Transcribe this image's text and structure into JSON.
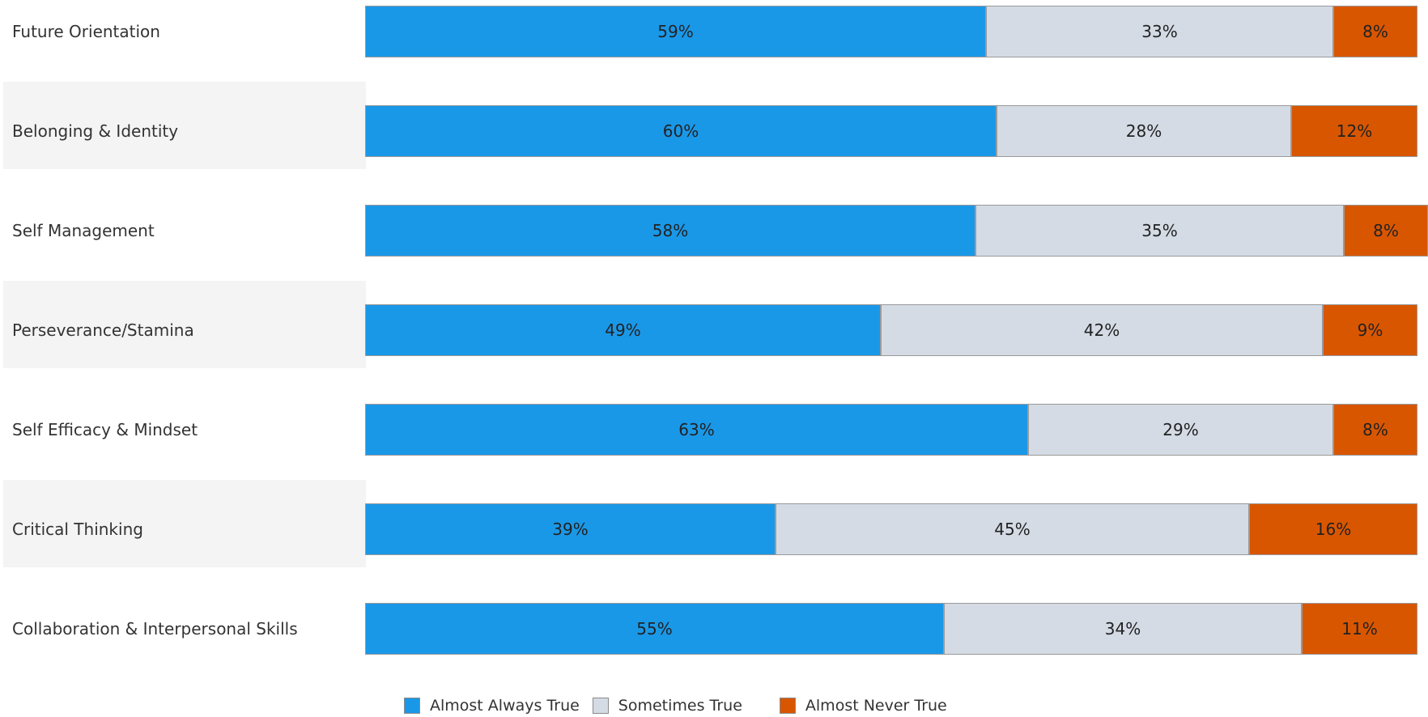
{
  "chart_data": {
    "type": "bar",
    "orientation": "horizontal",
    "stacked": true,
    "categories": [
      "Future Orientation",
      "Belonging & Identity",
      "Self Management",
      "Perseverance/Stamina",
      "Self Efficacy & Mindset",
      "Critical Thinking",
      "Collaboration & Interpersonal Skills"
    ],
    "series": [
      {
        "name": "Almost Always True",
        "color": "#1a98e8",
        "values": [
          59,
          60,
          58,
          49,
          63,
          39,
          55
        ],
        "labels": [
          "59%",
          "60%",
          "58%",
          "49%",
          "63%",
          "39%",
          "55%"
        ]
      },
      {
        "name": "Sometimes True",
        "color": "#d4dbe5",
        "values": [
          33,
          28,
          35,
          42,
          29,
          45,
          34
        ],
        "labels": [
          "33%",
          "28%",
          "35%",
          "42%",
          "29%",
          "45%",
          "34%"
        ]
      },
      {
        "name": "Almost Never True",
        "color": "#d95600",
        "values": [
          8,
          12,
          8,
          9,
          8,
          16,
          11
        ],
        "labels": [
          "8%",
          "12%",
          "8%",
          "9%",
          "8%",
          "16%",
          "11%"
        ]
      }
    ],
    "xlim": [
      0,
      100
    ],
    "legend_position": "bottom",
    "grid": false,
    "alternating_row_bands": true,
    "title": "",
    "xlabel": "",
    "ylabel": ""
  }
}
